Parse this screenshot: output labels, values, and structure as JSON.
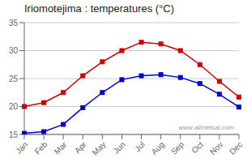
{
  "chart_data": {
    "type": "line",
    "title": "Iriomotejima : temperatures (°C)",
    "categories": [
      "Jan",
      "Feb",
      "Mar",
      "Apr",
      "May",
      "Jun",
      "Jul",
      "Aug",
      "Sep",
      "Oct",
      "Nov",
      "Dec"
    ],
    "series": [
      {
        "color": "#cc0000",
        "values": [
          20.0,
          20.7,
          22.5,
          25.5,
          28.0,
          30.0,
          31.5,
          31.2,
          30.0,
          27.5,
          24.5,
          21.7
        ],
        "marker": "square"
      },
      {
        "color": "#0000cc",
        "values": [
          15.2,
          15.5,
          16.8,
          19.8,
          22.5,
          24.8,
          25.5,
          25.7,
          25.2,
          24.1,
          22.2,
          19.9
        ],
        "marker": "square"
      }
    ],
    "ylim": [
      15,
      35
    ],
    "yticks": [
      15,
      20,
      25,
      30,
      35
    ],
    "grid": "y",
    "annotations": [
      "www.allmetsat.com"
    ]
  }
}
